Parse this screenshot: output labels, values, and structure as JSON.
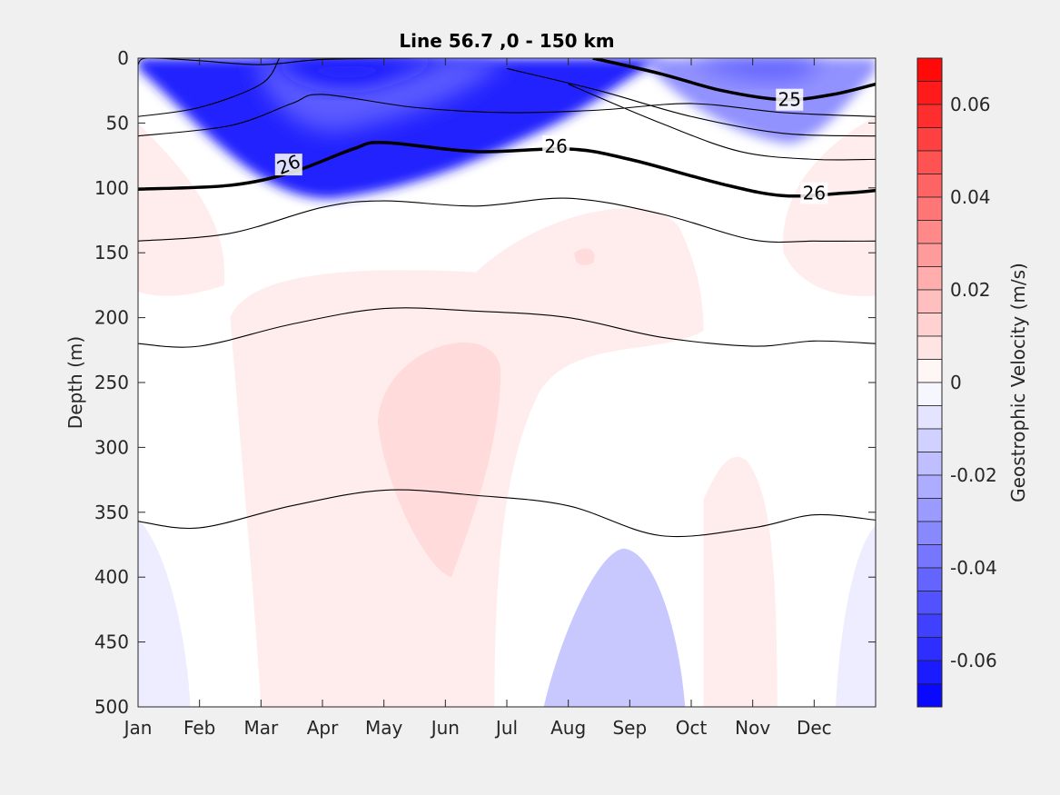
{
  "chart_data": {
    "type": "heatmap",
    "title": "Line 56.7 ,0 - 150 km",
    "xlabel": "",
    "ylabel": "Depth (m)",
    "x_ticks": [
      "Jan",
      "Feb",
      "Mar",
      "Apr",
      "May",
      "Jun",
      "Jul",
      "Aug",
      "Sep",
      "Oct",
      "Nov",
      "Dec"
    ],
    "x_range_months": [
      0,
      12
    ],
    "y_ticks": [
      0,
      50,
      100,
      150,
      200,
      250,
      300,
      350,
      400,
      450,
      500
    ],
    "ylim": [
      0,
      500
    ],
    "y_reversed": true,
    "grid": false,
    "colorbar": {
      "label": "Geostrophic Velocity (m/s)",
      "range": [
        -0.07,
        0.07
      ],
      "step": 0.005,
      "tick_values": [
        0.06,
        0.04,
        0.02,
        0,
        -0.02,
        -0.04,
        -0.06
      ],
      "tick_labels": [
        "0.06",
        "0.04",
        "0.02",
        "0",
        "-0.02",
        "-0.04",
        "-0.06"
      ],
      "negative_color": "#0000ff",
      "positive_color": "#ff0000",
      "zero_color": "#ffffff"
    },
    "velocity_regions": [
      {
        "name": "surface-blue-core",
        "value": -0.06,
        "month_center": 1.5,
        "depth_top": 0,
        "depth_bottom": 120
      },
      {
        "name": "surface-blue-autumn",
        "value": -0.03,
        "month_center": 10.5,
        "depth_top": 0,
        "depth_bottom": 70
      },
      {
        "name": "deep-blue-aug-sep",
        "value": -0.015,
        "month_center": 7.8,
        "depth_top": 378,
        "depth_bottom": 500
      },
      {
        "name": "deep-blue-jan",
        "value": -0.005,
        "month_center": 0.2,
        "depth_top": 360,
        "depth_bottom": 500
      },
      {
        "name": "deep-blue-dec",
        "value": -0.005,
        "month_center": 11.8,
        "depth_top": 360,
        "depth_bottom": 500
      },
      {
        "name": "pink-broad",
        "value": 0.005,
        "month_center": 5.0,
        "depth_top": 160,
        "depth_bottom": 500
      },
      {
        "name": "pink-core-may-jun",
        "value": 0.01,
        "month_center": 5.0,
        "depth_top": 215,
        "depth_bottom": 400
      },
      {
        "name": "pink-nov",
        "value": 0.005,
        "month_center": 10.2,
        "depth_top": 310,
        "depth_bottom": 500
      },
      {
        "name": "pink-jan",
        "value": 0.005,
        "month_center": 0.3,
        "depth_top": 50,
        "depth_bottom": 180
      },
      {
        "name": "pink-dec",
        "value": 0.005,
        "month_center": 11.6,
        "depth_top": 90,
        "depth_bottom": 180
      }
    ],
    "isopycnals": [
      {
        "label": "",
        "bold": false,
        "points": [
          [
            0,
            5
          ],
          [
            0.15,
            0
          ],
          [
            1.0,
            2
          ],
          [
            2.0,
            5
          ],
          [
            3.0,
            1
          ],
          [
            4.5,
            0
          ]
        ]
      },
      {
        "label": "",
        "bold": false,
        "points": [
          [
            0,
            45
          ],
          [
            1.0,
            38
          ],
          [
            2.0,
            20
          ],
          [
            2.3,
            0
          ]
        ]
      },
      {
        "label": "",
        "bold": false,
        "points": [
          [
            0,
            60
          ],
          [
            1.5,
            52
          ],
          [
            2.5,
            35
          ],
          [
            3.0,
            28
          ],
          [
            4.5,
            38
          ],
          [
            6.0,
            42
          ],
          [
            7.5,
            40
          ],
          [
            9.0,
            35
          ],
          [
            10.5,
            42
          ],
          [
            12,
            45
          ]
        ]
      },
      {
        "label": "25",
        "bold": true,
        "points": [
          [
            7.4,
            0
          ],
          [
            8.5,
            12
          ],
          [
            9.5,
            25
          ],
          [
            10.5,
            32
          ],
          [
            11.3,
            28
          ],
          [
            12,
            20
          ]
        ]
      },
      {
        "label": "",
        "bold": false,
        "points": [
          [
            6.0,
            8
          ],
          [
            7.5,
            25
          ],
          [
            9.0,
            45
          ],
          [
            10.5,
            58
          ],
          [
            12,
            60
          ]
        ]
      },
      {
        "label": "",
        "bold": false,
        "points": [
          [
            7.0,
            20
          ],
          [
            8.5,
            50
          ],
          [
            9.8,
            72
          ],
          [
            11.0,
            78
          ],
          [
            12,
            78
          ]
        ]
      },
      {
        "label": "26",
        "bold": true,
        "points": [
          [
            0,
            101
          ],
          [
            1.5,
            98
          ],
          [
            2.5,
            88
          ],
          [
            3.5,
            70
          ],
          [
            4.0,
            65
          ],
          [
            5.5,
            72
          ],
          [
            7.0,
            70
          ],
          [
            8.0,
            78
          ],
          [
            9.5,
            97
          ],
          [
            10.5,
            106
          ],
          [
            11.5,
            104
          ],
          [
            12,
            102
          ]
        ]
      },
      {
        "label": "",
        "bold": false,
        "points": [
          [
            0,
            141
          ],
          [
            1.5,
            135
          ],
          [
            3.0,
            115
          ],
          [
            4.0,
            110
          ],
          [
            5.5,
            114
          ],
          [
            7.0,
            108
          ],
          [
            8.5,
            120
          ],
          [
            10.0,
            140
          ],
          [
            11.0,
            141
          ],
          [
            12,
            141
          ]
        ]
      },
      {
        "label": "",
        "bold": false,
        "points": [
          [
            0,
            220
          ],
          [
            1.0,
            222
          ],
          [
            2.5,
            205
          ],
          [
            4.0,
            193
          ],
          [
            5.5,
            195
          ],
          [
            7.0,
            200
          ],
          [
            8.5,
            215
          ],
          [
            10.0,
            222
          ],
          [
            11.0,
            218
          ],
          [
            12,
            220
          ]
        ]
      },
      {
        "label": "",
        "bold": false,
        "points": [
          [
            0,
            357
          ],
          [
            1.0,
            362
          ],
          [
            2.5,
            345
          ],
          [
            4.0,
            333
          ],
          [
            5.5,
            337
          ],
          [
            7.0,
            345
          ],
          [
            8.5,
            368
          ],
          [
            10.0,
            362
          ],
          [
            11.0,
            352
          ],
          [
            12,
            356
          ]
        ]
      }
    ],
    "contour_labels": [
      {
        "text": "25",
        "month": 10.6,
        "depth": 32
      },
      {
        "text": "26",
        "month": 2.45,
        "depth": 82
      },
      {
        "text": "26",
        "month": 6.8,
        "depth": 68
      },
      {
        "text": "26",
        "month": 11.0,
        "depth": 104
      }
    ]
  }
}
